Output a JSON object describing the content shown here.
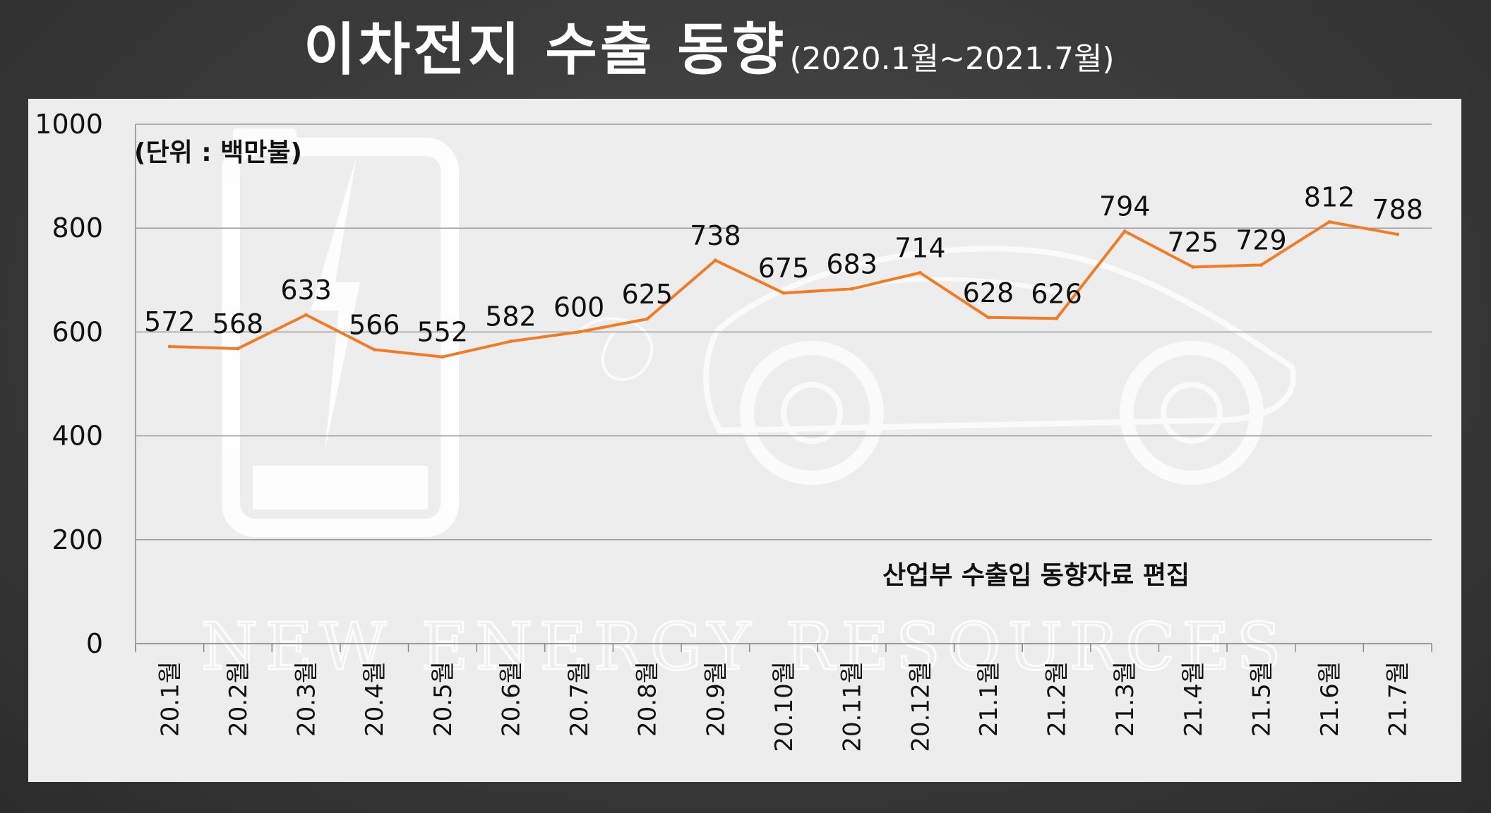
{
  "title": {
    "main": "이차전지 수출 동향",
    "sub": "(2020.1월~2021.7월)"
  },
  "watermark": "NEW ENERGY RESOURCES",
  "colors": {
    "line": "#F07D26",
    "panel": "#EDEDED",
    "background": "#3A3A3A"
  },
  "chart_data": {
    "type": "line",
    "categories": [
      "20.1월",
      "20.2월",
      "20.3월",
      "20.4월",
      "20.5월",
      "20.6월",
      "20.7월",
      "20.8월",
      "20.9월",
      "20.10월",
      "20.11월",
      "20.12월",
      "21.1월",
      "21.2월",
      "21.3월",
      "21.4월",
      "21.5월",
      "21.6월",
      "21.7월"
    ],
    "series": [
      {
        "values": [
          572,
          568,
          633,
          566,
          552,
          582,
          600,
          625,
          738,
          675,
          683,
          714,
          628,
          626,
          794,
          725,
          729,
          812,
          788
        ]
      }
    ],
    "ylim": [
      0,
      1000
    ],
    "yticks": [
      0,
      200,
      400,
      600,
      800,
      1000
    ],
    "unit_note": "(단위 : 백만불)",
    "source_note": "산업부 수출입 동향자료 편집",
    "grid": true,
    "legend": "none"
  }
}
